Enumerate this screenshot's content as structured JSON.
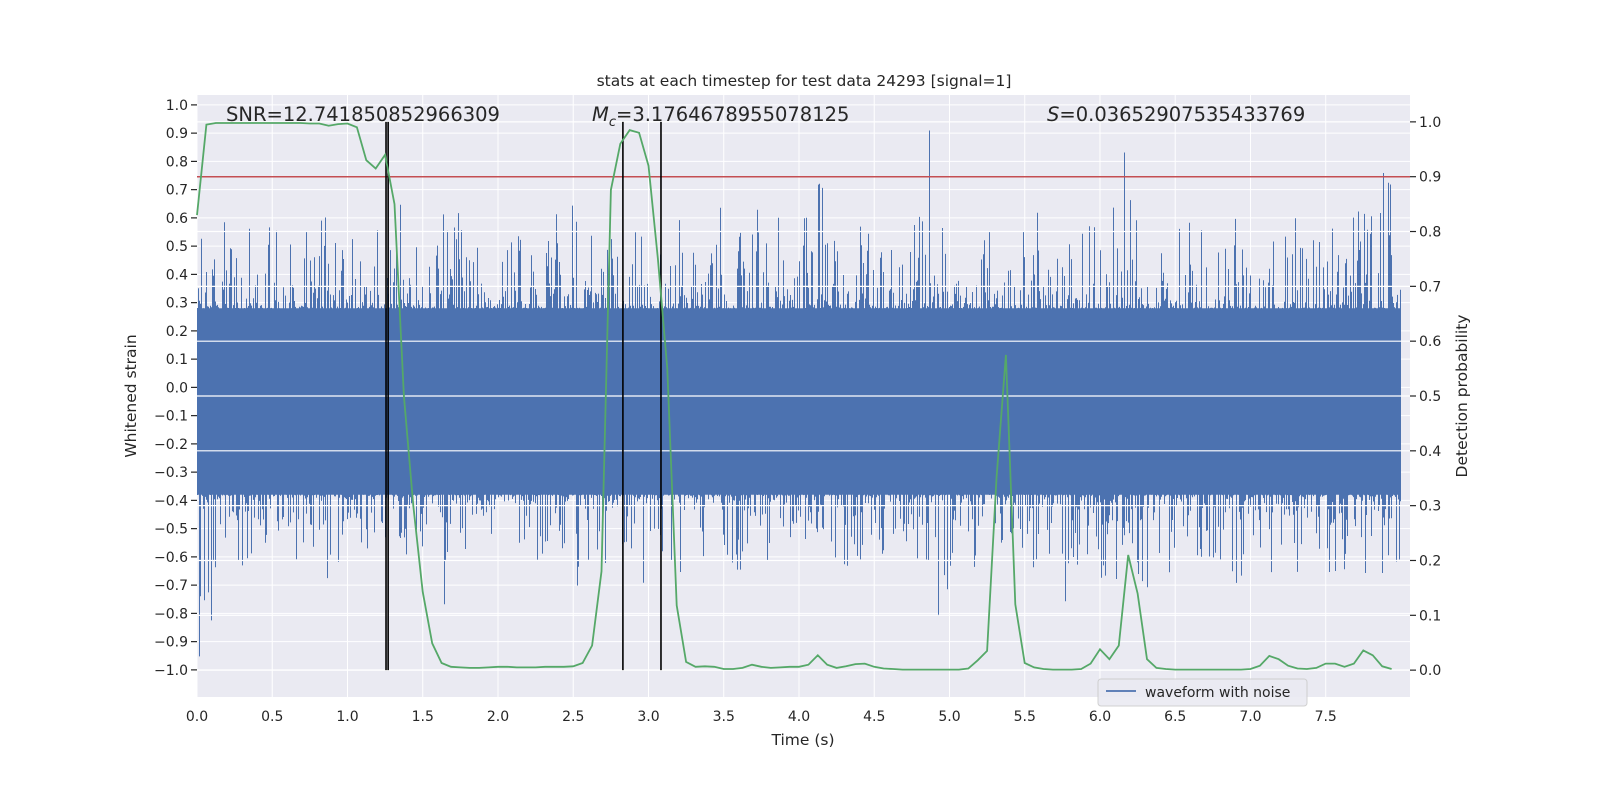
{
  "chart_data": {
    "type": "line",
    "title": "stats at each timestep for test data 24293 [signal=1]",
    "xlabel": "Time (s)",
    "ylabel": "Whitened strain",
    "ylabel_right": "Detection probability",
    "xlim": [
      0,
      8.06
    ],
    "ylim": [
      -1.096,
      1.035
    ],
    "ylim_right": [
      -0.049,
      1.049
    ],
    "grid": true,
    "x_ticks": [
      "0.0",
      "0.5",
      "1.0",
      "1.5",
      "2.0",
      "2.5",
      "3.0",
      "3.5",
      "4.0",
      "4.5",
      "5.0",
      "5.5",
      "6.0",
      "6.5",
      "7.0",
      "7.5"
    ],
    "y_ticks": [
      "1.0",
      "0.9",
      "0.8",
      "0.7",
      "0.6",
      "0.5",
      "0.4",
      "0.3",
      "0.2",
      "0.1",
      "0.0",
      "−0.1",
      "−0.2",
      "−0.3",
      "−0.4",
      "−0.5",
      "−0.6",
      "−0.7",
      "−0.8",
      "−0.9",
      "−1.0"
    ],
    "y_ticks_right": [
      "0.0",
      "0.1",
      "0.2",
      "0.3",
      "0.4",
      "0.5",
      "0.6",
      "0.7",
      "0.8",
      "0.9",
      "1.0"
    ],
    "annotations": {
      "snr": "SNR=12.741850852966309",
      "mc_symbol": "M",
      "mc_sub": "c",
      "mc_value": "=3.1764678955078125",
      "s_symbol": "S",
      "s_value": "=0.03652907535433769"
    },
    "legend": {
      "position": "lower-right",
      "entries": [
        {
          "label": "waveform with noise",
          "color": "#4c72b0"
        }
      ]
    },
    "waveform": {
      "name": "waveform with noise",
      "color": "#4c72b0",
      "bin_width_s": 0.125,
      "bin_max": [
        0.62,
        0.6,
        0.58,
        0.6,
        0.57,
        0.58,
        0.62,
        0.6,
        0.62,
        0.6,
        0.67,
        0.6,
        0.58,
        0.62,
        0.68,
        0.6,
        0.58,
        0.62,
        0.6,
        0.66,
        0.6,
        0.62,
        0.64,
        0.58,
        0.7,
        0.62,
        0.6,
        0.64,
        0.6,
        0.72,
        0.62,
        0.6,
        0.64,
        0.75,
        0.62,
        0.62,
        0.63,
        0.6,
        0.94,
        0.62,
        0.64,
        0.83,
        0.6,
        0.62,
        0.62,
        0.6,
        0.66,
        0.6,
        0.64,
        0.85,
        0.62,
        0.6,
        0.6,
        0.66,
        0.62,
        0.6,
        0.62,
        0.64,
        0.66,
        0.62,
        0.63,
        0.64,
        0.66,
        0.8
      ],
      "bin_min": [
        -0.97,
        -0.73,
        -0.64,
        -0.6,
        -0.62,
        -0.66,
        -0.7,
        -0.66,
        -0.6,
        -0.58,
        -0.6,
        -0.62,
        -0.6,
        -0.8,
        -0.6,
        -0.62,
        -0.66,
        -0.6,
        -0.62,
        -0.58,
        -0.72,
        -0.66,
        -0.62,
        -0.72,
        -0.64,
        -0.68,
        -0.62,
        -0.6,
        -0.66,
        -0.6,
        -0.62,
        -0.64,
        -0.58,
        -0.66,
        -0.68,
        -0.62,
        -0.6,
        -0.7,
        -0.62,
        -0.86,
        -0.68,
        -0.64,
        -0.62,
        -0.6,
        -0.66,
        -0.62,
        -0.78,
        -0.6,
        -0.7,
        -0.62,
        -0.72,
        -0.66,
        -0.64,
        -0.6,
        -0.62,
        -0.72,
        -0.76,
        -0.66,
        -0.68,
        -0.62,
        -0.7,
        -0.64,
        -0.66,
        -0.62
      ]
    },
    "detection_probability": {
      "color": "#55a868",
      "dt_s": 0.0625,
      "values": [
        0.83,
        0.995,
        0.998,
        0.998,
        0.998,
        0.998,
        0.998,
        0.998,
        0.998,
        0.998,
        0.998,
        0.998,
        0.997,
        0.997,
        0.993,
        0.996,
        0.997,
        0.99,
        0.93,
        0.915,
        0.94,
        0.85,
        0.5,
        0.3,
        0.143,
        0.049,
        0.013,
        0.006,
        0.005,
        0.004,
        0.004,
        0.005,
        0.006,
        0.006,
        0.005,
        0.005,
        0.005,
        0.006,
        0.006,
        0.006,
        0.007,
        0.013,
        0.045,
        0.18,
        0.876,
        0.96,
        0.985,
        0.98,
        0.92,
        0.75,
        0.55,
        0.118,
        0.015,
        0.006,
        0.007,
        0.006,
        0.002,
        0.002,
        0.004,
        0.01,
        0.006,
        0.004,
        0.005,
        0.006,
        0.006,
        0.01,
        0.027,
        0.01,
        0.004,
        0.007,
        0.011,
        0.012,
        0.006,
        0.003,
        0.002,
        0.001,
        0.001,
        0.001,
        0.001,
        0.001,
        0.001,
        0.001,
        0.003,
        0.018,
        0.035,
        0.35,
        0.575,
        0.12,
        0.013,
        0.005,
        0.002,
        0.001,
        0.001,
        0.001,
        0.002,
        0.012,
        0.038,
        0.02,
        0.045,
        0.21,
        0.14,
        0.02,
        0.004,
        0.002,
        0.001,
        0.001,
        0.001,
        0.001,
        0.001,
        0.001,
        0.001,
        0.001,
        0.002,
        0.008,
        0.026,
        0.02,
        0.008,
        0.003,
        0.002,
        0.004,
        0.012,
        0.012,
        0.006,
        0.012,
        0.036,
        0.027,
        0.007,
        0.002
      ]
    },
    "threshold": {
      "value": 0.9,
      "axis": "right",
      "color": "#c44e52"
    },
    "vertical_markers_s": [
      1.256,
      1.27,
      2.83,
      3.083
    ]
  }
}
